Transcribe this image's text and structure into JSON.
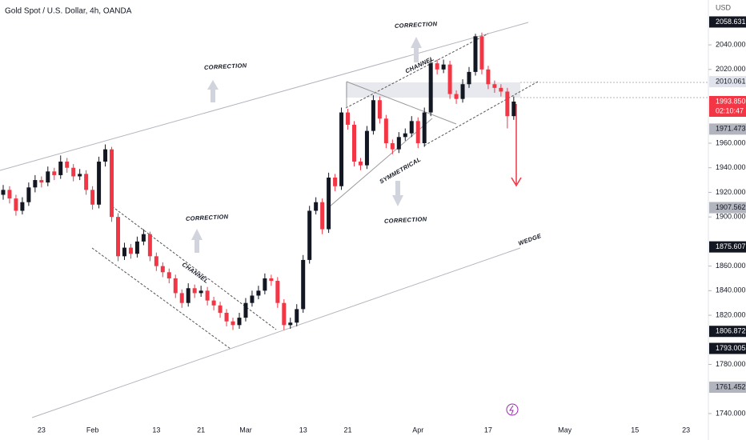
{
  "chart_data": {
    "type": "candlestick",
    "title": "Gold Spot / U.S. Dollar, 4h, OANDA",
    "currency": "USD",
    "up_color": "#131722",
    "down_color": "#f23645",
    "ylim": [
      1725,
      2070
    ],
    "yticks": [
      {
        "value": 1740,
        "label": "1740.000"
      },
      {
        "value": 1780,
        "label": "1780.000"
      },
      {
        "value": 1820,
        "label": "1820.000"
      },
      {
        "value": 1840,
        "label": "1840.000"
      },
      {
        "value": 1860,
        "label": "1860.000"
      },
      {
        "value": 1900,
        "label": "1900.000"
      },
      {
        "value": 1920,
        "label": "1920.000"
      },
      {
        "value": 1940,
        "label": "1940.000"
      },
      {
        "value": 1960,
        "label": "1960.000"
      },
      {
        "value": 2020,
        "label": "2020.000"
      },
      {
        "value": 2040,
        "label": "2040.000"
      }
    ],
    "categories": [
      null,
      null,
      null,
      null,
      null,
      null,
      "23",
      null,
      null,
      null,
      null,
      null,
      null,
      null,
      "Feb",
      null,
      null,
      null,
      null,
      null,
      null,
      null,
      null,
      null,
      "13",
      null,
      null,
      null,
      null,
      null,
      null,
      "21",
      null,
      null,
      null,
      null,
      null,
      null,
      "Mar",
      null,
      null,
      null,
      null,
      null,
      null,
      null,
      null,
      "13",
      null,
      null,
      null,
      null,
      null,
      null,
      "21",
      null,
      null,
      null,
      null,
      null,
      null,
      null,
      null,
      null,
      null,
      "Apr",
      null,
      null,
      null,
      null,
      null,
      null,
      null,
      null,
      null,
      null,
      "17",
      null,
      null,
      null,
      null,
      null,
      null,
      null,
      null,
      null,
      null,
      null,
      "May",
      null,
      null,
      null,
      null,
      null,
      null,
      null,
      null,
      null,
      null,
      "15",
      null,
      null,
      null,
      null,
      null,
      null,
      null,
      "23",
      null,
      null,
      null
    ],
    "ohlc": [
      [
        1918,
        1926,
        1914,
        1922
      ],
      [
        1922,
        1925,
        1911,
        1915
      ],
      [
        1915,
        1918,
        1901,
        1905
      ],
      [
        1905,
        1916,
        1902,
        1912
      ],
      [
        1912,
        1928,
        1909,
        1924
      ],
      [
        1924,
        1934,
        1920,
        1930
      ],
      [
        1930,
        1933,
        1924,
        1928
      ],
      [
        1928,
        1941,
        1925,
        1937
      ],
      [
        1937,
        1940,
        1930,
        1934
      ],
      [
        1934,
        1950,
        1931,
        1945
      ],
      [
        1945,
        1948,
        1936,
        1940
      ],
      [
        1940,
        1943,
        1929,
        1933
      ],
      [
        1933,
        1939,
        1930,
        1935
      ],
      [
        1935,
        1938,
        1918,
        1922
      ],
      [
        1922,
        1925,
        1906,
        1910
      ],
      [
        1910,
        1949,
        1907,
        1945
      ],
      [
        1945,
        1959,
        1941,
        1955
      ],
      [
        1955,
        1957,
        1896,
        1900
      ],
      [
        1900,
        1903,
        1864,
        1868
      ],
      [
        1868,
        1879,
        1865,
        1875
      ],
      [
        1875,
        1878,
        1866,
        1870
      ],
      [
        1870,
        1884,
        1867,
        1880
      ],
      [
        1880,
        1890,
        1877,
        1886
      ],
      [
        1886,
        1888,
        1864,
        1868
      ],
      [
        1868,
        1871,
        1856,
        1860
      ],
      [
        1860,
        1863,
        1851,
        1855
      ],
      [
        1855,
        1858,
        1846,
        1850
      ],
      [
        1850,
        1853,
        1834,
        1838
      ],
      [
        1838,
        1841,
        1826,
        1830
      ],
      [
        1830,
        1846,
        1827,
        1842
      ],
      [
        1842,
        1845,
        1834,
        1838
      ],
      [
        1838,
        1844,
        1835,
        1840
      ],
      [
        1840,
        1843,
        1828,
        1832
      ],
      [
        1832,
        1835,
        1824,
        1828
      ],
      [
        1828,
        1831,
        1818,
        1822
      ],
      [
        1822,
        1825,
        1811,
        1815
      ],
      [
        1815,
        1818,
        1808,
        1812
      ],
      [
        1812,
        1822,
        1809,
        1818
      ],
      [
        1818,
        1834,
        1815,
        1830
      ],
      [
        1830,
        1840,
        1827,
        1836
      ],
      [
        1836,
        1844,
        1833,
        1840
      ],
      [
        1840,
        1854,
        1837,
        1850
      ],
      [
        1850,
        1853,
        1844,
        1848
      ],
      [
        1848,
        1851,
        1826,
        1830
      ],
      [
        1830,
        1833,
        1808,
        1812
      ],
      [
        1812,
        1818,
        1809,
        1814
      ],
      [
        1814,
        1829,
        1811,
        1825
      ],
      [
        1825,
        1869,
        1822,
        1865
      ],
      [
        1865,
        1909,
        1862,
        1905
      ],
      [
        1905,
        1916,
        1902,
        1912
      ],
      [
        1912,
        1915,
        1886,
        1890
      ],
      [
        1890,
        1936,
        1887,
        1932
      ],
      [
        1932,
        1935,
        1921,
        1925
      ],
      [
        1925,
        1989,
        1922,
        1985
      ],
      [
        1985,
        1988,
        1971,
        1975
      ],
      [
        1975,
        1978,
        1941,
        1945
      ],
      [
        1945,
        1948,
        1938,
        1942
      ],
      [
        1942,
        1974,
        1939,
        1970
      ],
      [
        1970,
        1999,
        1967,
        1995
      ],
      [
        1995,
        1998,
        1976,
        1980
      ],
      [
        1980,
        1983,
        1956,
        1960
      ],
      [
        1960,
        1963,
        1951,
        1955
      ],
      [
        1955,
        1969,
        1952,
        1965
      ],
      [
        1965,
        1972,
        1962,
        1968
      ],
      [
        1968,
        1982,
        1965,
        1978
      ],
      [
        1978,
        1981,
        1956,
        1960
      ],
      [
        1960,
        1989,
        1957,
        1985
      ],
      [
        1985,
        2029,
        1982,
        2025
      ],
      [
        2025,
        2028,
        2016,
        2020
      ],
      [
        2020,
        2028,
        2017,
        2024
      ],
      [
        2024,
        2027,
        1996,
        2000
      ],
      [
        2000,
        2003,
        1992,
        1996
      ],
      [
        1996,
        2012,
        1993,
        2008
      ],
      [
        2008,
        2022,
        2005,
        2018
      ],
      [
        2018,
        2049,
        2015,
        2047
      ],
      [
        2047,
        2050,
        2016,
        2020
      ],
      [
        2020,
        2023,
        2004,
        2008
      ],
      [
        2008,
        2011,
        2001,
        2005
      ],
      [
        2005,
        2008,
        1998,
        2002
      ],
      [
        2002,
        2005,
        1972,
        1982
      ],
      [
        1982,
        1998,
        1979,
        1993.85
      ],
      null,
      null,
      null,
      null,
      null,
      null,
      null,
      null,
      null,
      null,
      null,
      null,
      null,
      null,
      null,
      null,
      null,
      null,
      null,
      null,
      null,
      null,
      null,
      null,
      null,
      null,
      null,
      null,
      null,
      null
    ],
    "price_labels": [
      {
        "value": 2058.631,
        "color": "#131722"
      },
      {
        "value": 2010.061,
        "color": "#e0e3eb"
      },
      {
        "value": 1993.85,
        "label": "1993.850",
        "color": "#f23645"
      },
      {
        "value": 1971.473,
        "color": "#b2b5be"
      },
      {
        "value": 1907.562,
        "color": "#b2b5be"
      },
      {
        "value": 1875.607,
        "color": "#131722"
      },
      {
        "value": 1806.872,
        "color": "#131722"
      },
      {
        "value": 1793.005,
        "color": "#131722"
      },
      {
        "value": 1761.452,
        "color": "#b2b5be"
      }
    ],
    "countdown": "02:10:47",
    "annotations": [
      "CORRECTION",
      "CORRECTION",
      "CORRECTION",
      "CORRECTION",
      "CHANNEL",
      "CHANNEL",
      "SYMMETRICAL",
      "WEDGE"
    ]
  }
}
